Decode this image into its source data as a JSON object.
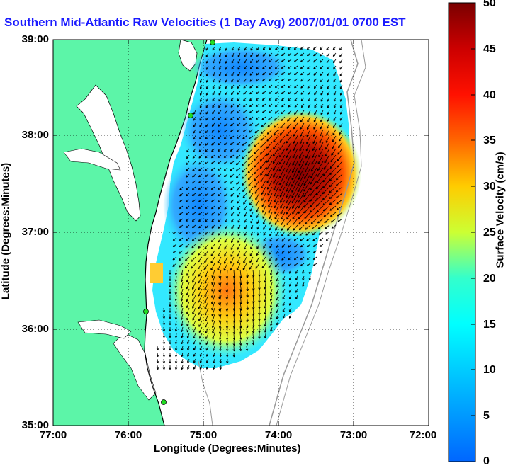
{
  "title": "Southern Mid-Atlantic Raw Velocities (1 Day Avg) 2007/01/01 0700 EST",
  "y_axis": {
    "label": "Latitude (Degrees:Minutes)",
    "ticks": [
      "39:00",
      "38:00",
      "37:00",
      "36:00",
      "35:00"
    ]
  },
  "x_axis": {
    "label": "Longitude (Degrees:Minutes)",
    "ticks": [
      "77:00",
      "76:00",
      "75:00",
      "74:00",
      "73:00",
      "72:00"
    ]
  },
  "colorbar": {
    "label": "Surface Velocity (cm/s)",
    "min": 0,
    "max": 50,
    "ticks": [
      "50",
      "45",
      "40",
      "35",
      "30",
      "25",
      "20",
      "15",
      "10",
      "5",
      "0"
    ]
  },
  "colors": {
    "land": "#5cf5a8",
    "title": "#1a1aff",
    "hf_station": "#22dd22"
  }
}
